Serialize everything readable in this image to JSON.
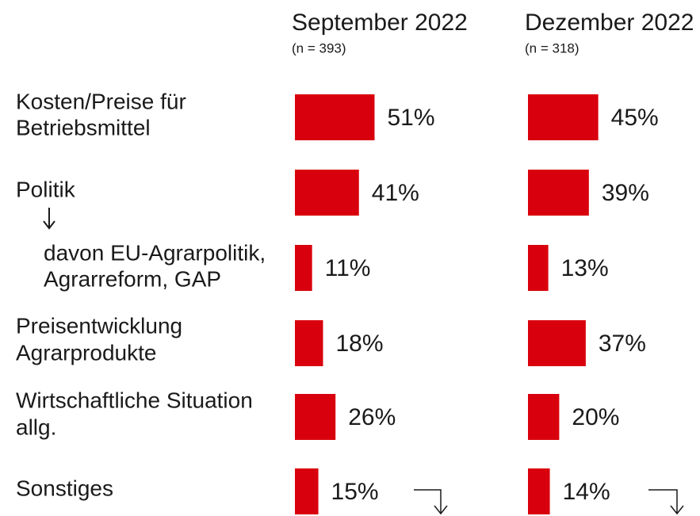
{
  "chart_data": {
    "type": "bar",
    "categories": [
      [
        "Kosten/Preise für",
        "Betriebsmittel"
      ],
      [
        "Politik"
      ],
      [
        "davon EU-Agrarpolitik,",
        "Agrarreform, GAP"
      ],
      [
        "Preisentwicklung",
        "Agrarprodukte"
      ],
      [
        "Wirtschaftliche Situation",
        "allg."
      ],
      [
        "Sonstiges"
      ]
    ],
    "series": [
      {
        "name": "September 2022",
        "note": "(n = 393)",
        "color": "#d9000d",
        "values": [
          51,
          41,
          11,
          18,
          26,
          15
        ],
        "value_labels": [
          "51%",
          "41%",
          "11%",
          "18%",
          "26%",
          "15%"
        ]
      },
      {
        "name": "Dezember 2022",
        "note": "(n = 318)",
        "color": "#d9000d",
        "values": [
          45,
          39,
          13,
          37,
          20,
          14
        ],
        "value_labels": [
          "45%",
          "39%",
          "13%",
          "37%",
          "20%",
          "14%"
        ]
      }
    ]
  }
}
